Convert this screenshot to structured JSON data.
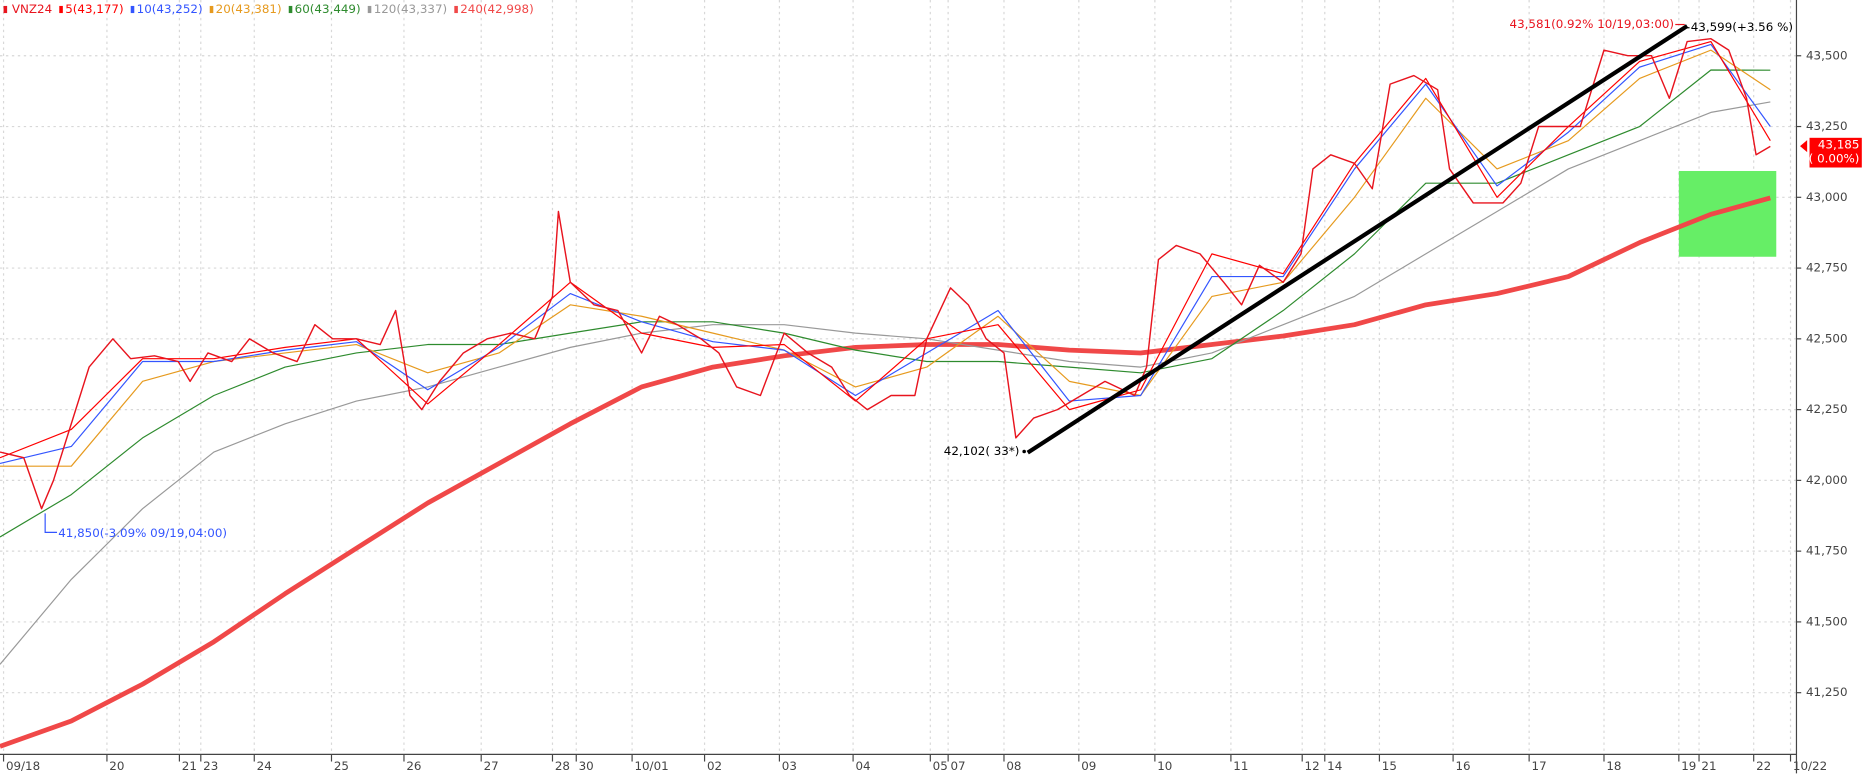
{
  "chart_data": {
    "type": "line",
    "title": "VNZ24",
    "xlim": [
      0,
      1512
    ],
    "ylim": [
      41032,
      43697
    ],
    "grid": true,
    "xticks": [
      {
        "value": 3,
        "label": "09/18"
      },
      {
        "value": 90,
        "label": "20"
      },
      {
        "value": 151,
        "label": "21"
      },
      {
        "value": 169,
        "label": "23"
      },
      {
        "value": 214,
        "label": "24"
      },
      {
        "value": 279,
        "label": "25"
      },
      {
        "value": 340,
        "label": "26"
      },
      {
        "value": 405,
        "label": "27"
      },
      {
        "value": 465,
        "label": "28"
      },
      {
        "value": 485,
        "label": "30"
      },
      {
        "value": 532,
        "label": "10/01"
      },
      {
        "value": 593,
        "label": "02"
      },
      {
        "value": 656,
        "label": "03"
      },
      {
        "value": 718,
        "label": "04"
      },
      {
        "value": 783,
        "label": "05"
      },
      {
        "value": 798,
        "label": "07"
      },
      {
        "value": 845,
        "label": "08"
      },
      {
        "value": 908,
        "label": "09"
      },
      {
        "value": 972,
        "label": "10"
      },
      {
        "value": 1036,
        "label": "11"
      },
      {
        "value": 1096,
        "label": "12"
      },
      {
        "value": 1115,
        "label": "14"
      },
      {
        "value": 1161,
        "label": "15"
      },
      {
        "value": 1223,
        "label": "16"
      },
      {
        "value": 1287,
        "label": "17"
      },
      {
        "value": 1350,
        "label": "18"
      },
      {
        "value": 1413,
        "label": "19"
      },
      {
        "value": 1430,
        "label": "21"
      },
      {
        "value": 1476,
        "label": "22"
      },
      {
        "value": 1507,
        "label": "10/22"
      }
    ],
    "yticks": [
      {
        "value": 41250,
        "label": "41,250"
      },
      {
        "value": 41500,
        "label": "41,500"
      },
      {
        "value": 41750,
        "label": "41,750"
      },
      {
        "value": 42000,
        "label": "42,000"
      },
      {
        "value": 42250,
        "label": "42,250"
      },
      {
        "value": 42500,
        "label": "42,500"
      },
      {
        "value": 42750,
        "label": "42,750"
      },
      {
        "value": 43000,
        "label": "43,000"
      },
      {
        "value": 43250,
        "label": "43,250"
      },
      {
        "value": 43500,
        "label": "43,500"
      }
    ],
    "price": {
      "color": "#e8141e",
      "x": [
        0,
        20,
        35,
        45,
        60,
        75,
        95,
        110,
        130,
        150,
        160,
        175,
        195,
        210,
        230,
        250,
        265,
        280,
        300,
        320,
        333,
        345,
        355,
        370,
        390,
        410,
        430,
        450,
        465,
        470,
        480,
        500,
        520,
        540,
        555,
        570,
        590,
        605,
        620,
        640,
        660,
        680,
        700,
        715,
        730,
        750,
        770,
        780,
        800,
        815,
        830,
        845,
        855,
        870,
        890,
        910,
        930,
        955,
        965,
        975,
        990,
        1010,
        1030,
        1045,
        1060,
        1080,
        1095,
        1105,
        1120,
        1140,
        1155,
        1170,
        1190,
        1210,
        1220,
        1240,
        1265,
        1280,
        1295,
        1315,
        1330,
        1350,
        1370,
        1390,
        1405,
        1420,
        1440,
        1455,
        1470,
        1478,
        1490
      ],
      "values": [
        42100,
        42080,
        41900,
        42000,
        42200,
        42400,
        42500,
        42430,
        42440,
        42420,
        42350,
        42450,
        42420,
        42500,
        42450,
        42420,
        42550,
        42500,
        42500,
        42480,
        42600,
        42300,
        42250,
        42350,
        42450,
        42500,
        42520,
        42500,
        42650,
        42950,
        42700,
        42620,
        42600,
        42450,
        42580,
        42550,
        42500,
        42450,
        42330,
        42300,
        42520,
        42450,
        42400,
        42300,
        42250,
        42300,
        42300,
        42500,
        42680,
        42620,
        42500,
        42450,
        42150,
        42220,
        42250,
        42300,
        42350,
        42300,
        42400,
        42780,
        42830,
        42800,
        42700,
        42620,
        42760,
        42700,
        42800,
        43100,
        43150,
        43120,
        43030,
        43400,
        43430,
        43380,
        43100,
        42980,
        42980,
        43050,
        43250,
        43250,
        43250,
        43520,
        43500,
        43500,
        43350,
        43550,
        43560,
        43520,
        43350,
        43150,
        43180
      ]
    },
    "series": [
      {
        "name": "5(43,177)",
        "color": "#ff0000",
        "width": 1,
        "x": [
          0,
          60,
          120,
          180,
          240,
          300,
          360,
          420,
          480,
          540,
          600,
          660,
          720,
          780,
          840,
          900,
          960,
          1020,
          1080,
          1140,
          1200,
          1260,
          1320,
          1380,
          1440,
          1490
        ],
        "values": [
          42080,
          42180,
          42430,
          42430,
          42470,
          42500,
          42270,
          42480,
          42700,
          42520,
          42470,
          42480,
          42280,
          42500,
          42550,
          42250,
          42320,
          42800,
          42730,
          43120,
          43420,
          43000,
          43250,
          43480,
          43550,
          43200
        ]
      },
      {
        "name": "10(43,252)",
        "color": "#3355ff",
        "width": 1,
        "x": [
          0,
          60,
          120,
          180,
          240,
          300,
          360,
          420,
          480,
          540,
          600,
          660,
          720,
          780,
          840,
          900,
          960,
          1020,
          1080,
          1140,
          1200,
          1260,
          1320,
          1380,
          1440,
          1490
        ],
        "values": [
          42060,
          42120,
          42420,
          42420,
          42460,
          42490,
          42320,
          42470,
          42660,
          42560,
          42490,
          42460,
          42300,
          42450,
          42600,
          42280,
          42300,
          42720,
          42720,
          43100,
          43400,
          43040,
          43230,
          43460,
          43540,
          43250
        ]
      },
      {
        "name": "20(43,381)",
        "color": "#e69a1e",
        "width": 1,
        "x": [
          0,
          60,
          120,
          180,
          240,
          300,
          360,
          420,
          480,
          540,
          600,
          660,
          720,
          780,
          840,
          900,
          960,
          1020,
          1080,
          1140,
          1200,
          1260,
          1320,
          1380,
          1440,
          1490
        ],
        "values": [
          42050,
          42050,
          42350,
          42420,
          42450,
          42480,
          42380,
          42450,
          42620,
          42580,
          42520,
          42460,
          42330,
          42400,
          42580,
          42350,
          42300,
          42650,
          42700,
          43000,
          43350,
          43100,
          43200,
          43420,
          43520,
          43380
        ]
      },
      {
        "name": "60(43,449)",
        "color": "#2e8b2e",
        "width": 1,
        "x": [
          0,
          60,
          120,
          180,
          240,
          300,
          360,
          420,
          480,
          540,
          600,
          660,
          720,
          780,
          840,
          900,
          960,
          1020,
          1080,
          1140,
          1200,
          1260,
          1320,
          1380,
          1440,
          1490
        ],
        "values": [
          41800,
          41950,
          42150,
          42300,
          42400,
          42450,
          42480,
          42480,
          42520,
          42560,
          42560,
          42520,
          42460,
          42420,
          42420,
          42400,
          42380,
          42430,
          42600,
          42800,
          43050,
          43050,
          43150,
          43250,
          43450,
          43449
        ]
      },
      {
        "name": "120(43,337)",
        "color": "#999999",
        "width": 1,
        "x": [
          0,
          60,
          120,
          180,
          240,
          300,
          360,
          420,
          480,
          540,
          600,
          660,
          720,
          780,
          840,
          900,
          960,
          1020,
          1080,
          1140,
          1200,
          1260,
          1320,
          1380,
          1440,
          1490
        ],
        "values": [
          41350,
          41650,
          41900,
          42100,
          42200,
          42280,
          42330,
          42400,
          42470,
          42520,
          42550,
          42550,
          42520,
          42500,
          42460,
          42420,
          42400,
          42450,
          42550,
          42650,
          42800,
          42950,
          43100,
          43200,
          43300,
          43337
        ]
      },
      {
        "name": "240(42,998)",
        "color": "#f04848",
        "width": 4,
        "x": [
          0,
          60,
          120,
          180,
          240,
          300,
          360,
          420,
          480,
          540,
          600,
          660,
          720,
          780,
          840,
          900,
          960,
          1020,
          1080,
          1140,
          1200,
          1260,
          1320,
          1380,
          1440,
          1490
        ],
        "values": [
          41060,
          41150,
          41280,
          41430,
          41600,
          41760,
          41920,
          42060,
          42200,
          42330,
          42400,
          42440,
          42470,
          42480,
          42480,
          42460,
          42450,
          42480,
          42510,
          42550,
          42620,
          42660,
          42720,
          42840,
          42940,
          42998
        ]
      }
    ],
    "trendline": {
      "color": "#000000",
      "x": [
        865,
        1420
      ],
      "values": [
        42098,
        43605
      ]
    },
    "highlight": {
      "color": "#66ee66",
      "x": [
        1413,
        1495
      ],
      "values": [
        42790,
        43093
      ]
    },
    "annotations": [
      {
        "text": "41,850(-3.09% 09/19,04:00)",
        "value": 41850,
        "x": 38,
        "color": "#3355ff"
      },
      {
        "text": "42,102( 33*)",
        "value": 42102,
        "x": 862,
        "color": "#000000"
      },
      {
        "text": "43,581(0.92% 10/19,03:00)",
        "value": 43581,
        "x": 1412,
        "color": "#e8141e"
      },
      {
        "text": "43,599(+3.56 %)",
        "value": 43599,
        "x": 1420,
        "color": "#000000"
      }
    ],
    "current": {
      "value": 43185,
      "label": "43,185",
      "change": "( 0.00%)",
      "color": "#ff0000"
    }
  }
}
